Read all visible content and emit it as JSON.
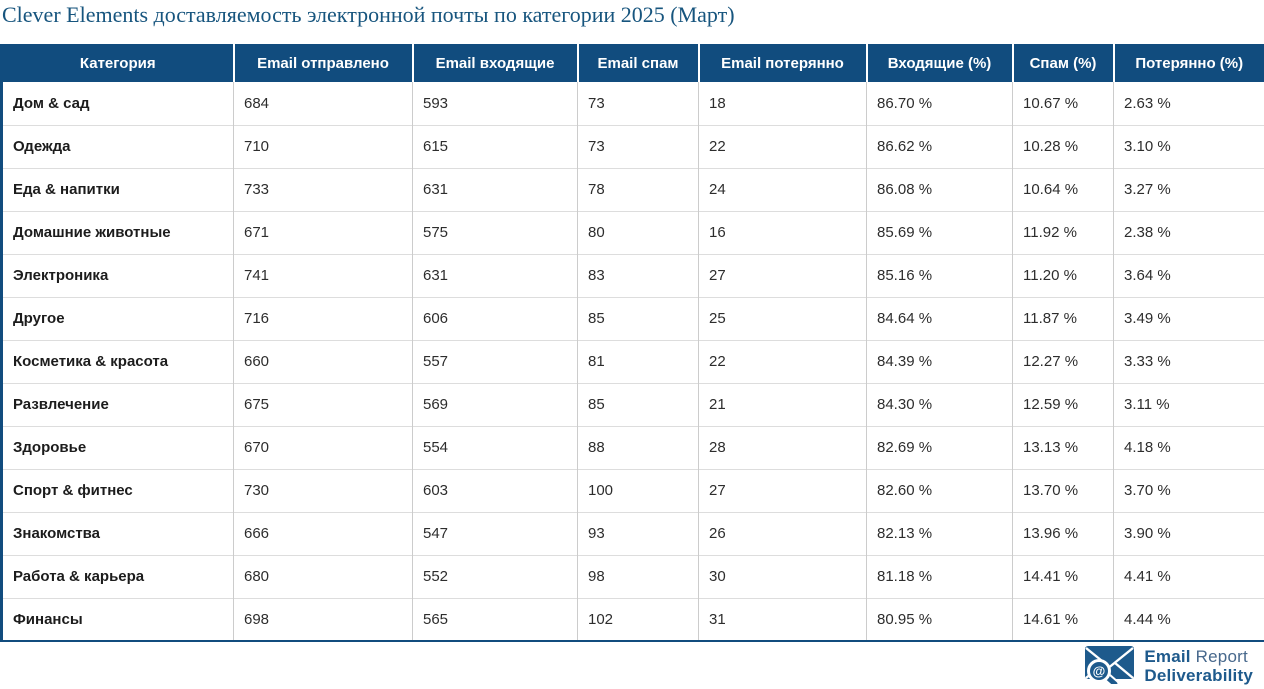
{
  "title": "Clever Elements доставляемость электронной почты по категории 2025 (Март)",
  "colors": {
    "header_bg": "#114C7E",
    "title": "#17557E",
    "table_border": "#114C7E",
    "logo_primary": "#1E5A8C",
    "logo_secondary": "#47688C"
  },
  "table": {
    "columns": [
      "Категория",
      "Email отправлено",
      "Email входящие",
      "Email спам",
      "Email потерянно",
      "Входящие (%)",
      "Спам (%)",
      "Потерянно (%)"
    ],
    "rows": [
      {
        "cells": [
          "Дом & сад",
          "684",
          "593",
          "73",
          "18",
          "86.70 %",
          "10.67 %",
          "2.63 %"
        ]
      },
      {
        "cells": [
          "Одежда",
          "710",
          "615",
          "73",
          "22",
          "86.62 %",
          "10.28 %",
          "3.10 %"
        ]
      },
      {
        "cells": [
          "Еда & напитки",
          "733",
          "631",
          "78",
          "24",
          "86.08 %",
          "10.64 %",
          "3.27 %"
        ]
      },
      {
        "cells": [
          "Домашние животные",
          "671",
          "575",
          "80",
          "16",
          "85.69 %",
          "11.92 %",
          "2.38 %"
        ]
      },
      {
        "cells": [
          "Электроника",
          "741",
          "631",
          "83",
          "27",
          "85.16 %",
          "11.20 %",
          "3.64 %"
        ]
      },
      {
        "cells": [
          "Другое",
          "716",
          "606",
          "85",
          "25",
          "84.64 %",
          "11.87 %",
          "3.49 %"
        ]
      },
      {
        "cells": [
          "Косметика & красота",
          "660",
          "557",
          "81",
          "22",
          "84.39 %",
          "12.27 %",
          "3.33 %"
        ]
      },
      {
        "cells": [
          "Развлечение",
          "675",
          "569",
          "85",
          "21",
          "84.30 %",
          "12.59 %",
          "3.11 %"
        ]
      },
      {
        "cells": [
          "Здоровье",
          "670",
          "554",
          "88",
          "28",
          "82.69 %",
          "13.13 %",
          "4.18 %"
        ]
      },
      {
        "cells": [
          "Спорт & фитнес",
          "730",
          "603",
          "100",
          "27",
          "82.60 %",
          "13.70 %",
          "3.70 %"
        ]
      },
      {
        "cells": [
          "Знакомства",
          "666",
          "547",
          "93",
          "26",
          "82.13 %",
          "13.96 %",
          "3.90 %"
        ]
      },
      {
        "cells": [
          "Работа & карьера",
          "680",
          "552",
          "98",
          "30",
          "81.18 %",
          "14.41 %",
          "4.41 %"
        ]
      },
      {
        "cells": [
          "Финансы",
          "698",
          "565",
          "102",
          "31",
          "80.95 %",
          "14.61 %",
          "4.44 %"
        ]
      }
    ]
  },
  "footer": {
    "logo": {
      "line1_bold": "Email",
      "line1_regular": "Report",
      "line2": "Deliverability",
      "at_symbol": "@"
    }
  }
}
